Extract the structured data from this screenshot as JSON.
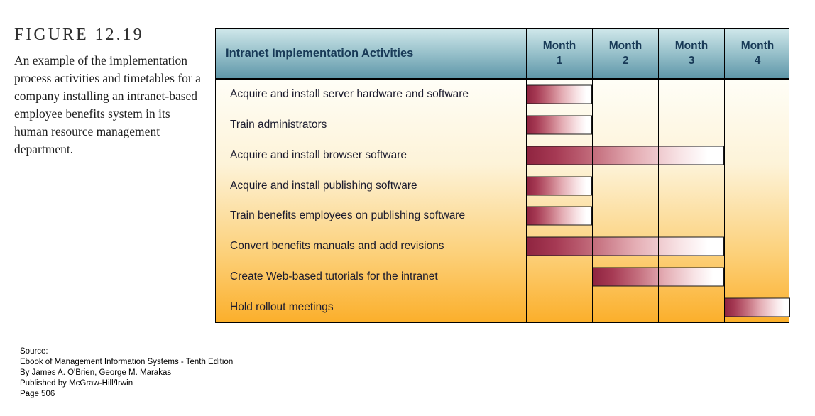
{
  "figure": {
    "label": "FIGURE 12.19",
    "caption": "An example of the implementation process activities and timetables for a company installing an intranet-based employee benefits system in its human resource management department."
  },
  "source": {
    "lines": [
      "Source:",
      "Ebook of Management Information Systems - Tenth Edition",
      "By James A. O'Brien, George M. Marakas",
      "Published by McGraw-Hill/Irwin",
      "Page 506"
    ]
  },
  "chart_data": {
    "type": "gantt",
    "title": "Intranet Implementation Activities",
    "columns": [
      "Month 1",
      "Month 2",
      "Month 3",
      "Month 4"
    ],
    "unit": "month",
    "bar_color_start": "#8f2440",
    "bar_color_end": "#ffffff",
    "tasks": [
      {
        "label": "Acquire and install server hardware and software",
        "start": 0,
        "end": 1
      },
      {
        "label": "Train administrators",
        "start": 0,
        "end": 1
      },
      {
        "label": "Acquire and install browser software",
        "start": 0,
        "end": 3
      },
      {
        "label": "Acquire and install publishing software",
        "start": 0,
        "end": 1
      },
      {
        "label": "Train benefits employees on publishing software",
        "start": 0,
        "end": 1
      },
      {
        "label": "Convert benefits manuals and add revisions",
        "start": 0,
        "end": 3
      },
      {
        "label": "Create Web-based tutorials for the intranet",
        "start": 1,
        "end": 3
      },
      {
        "label": "Hold rollout meetings",
        "start": 3,
        "end": 4
      }
    ]
  }
}
